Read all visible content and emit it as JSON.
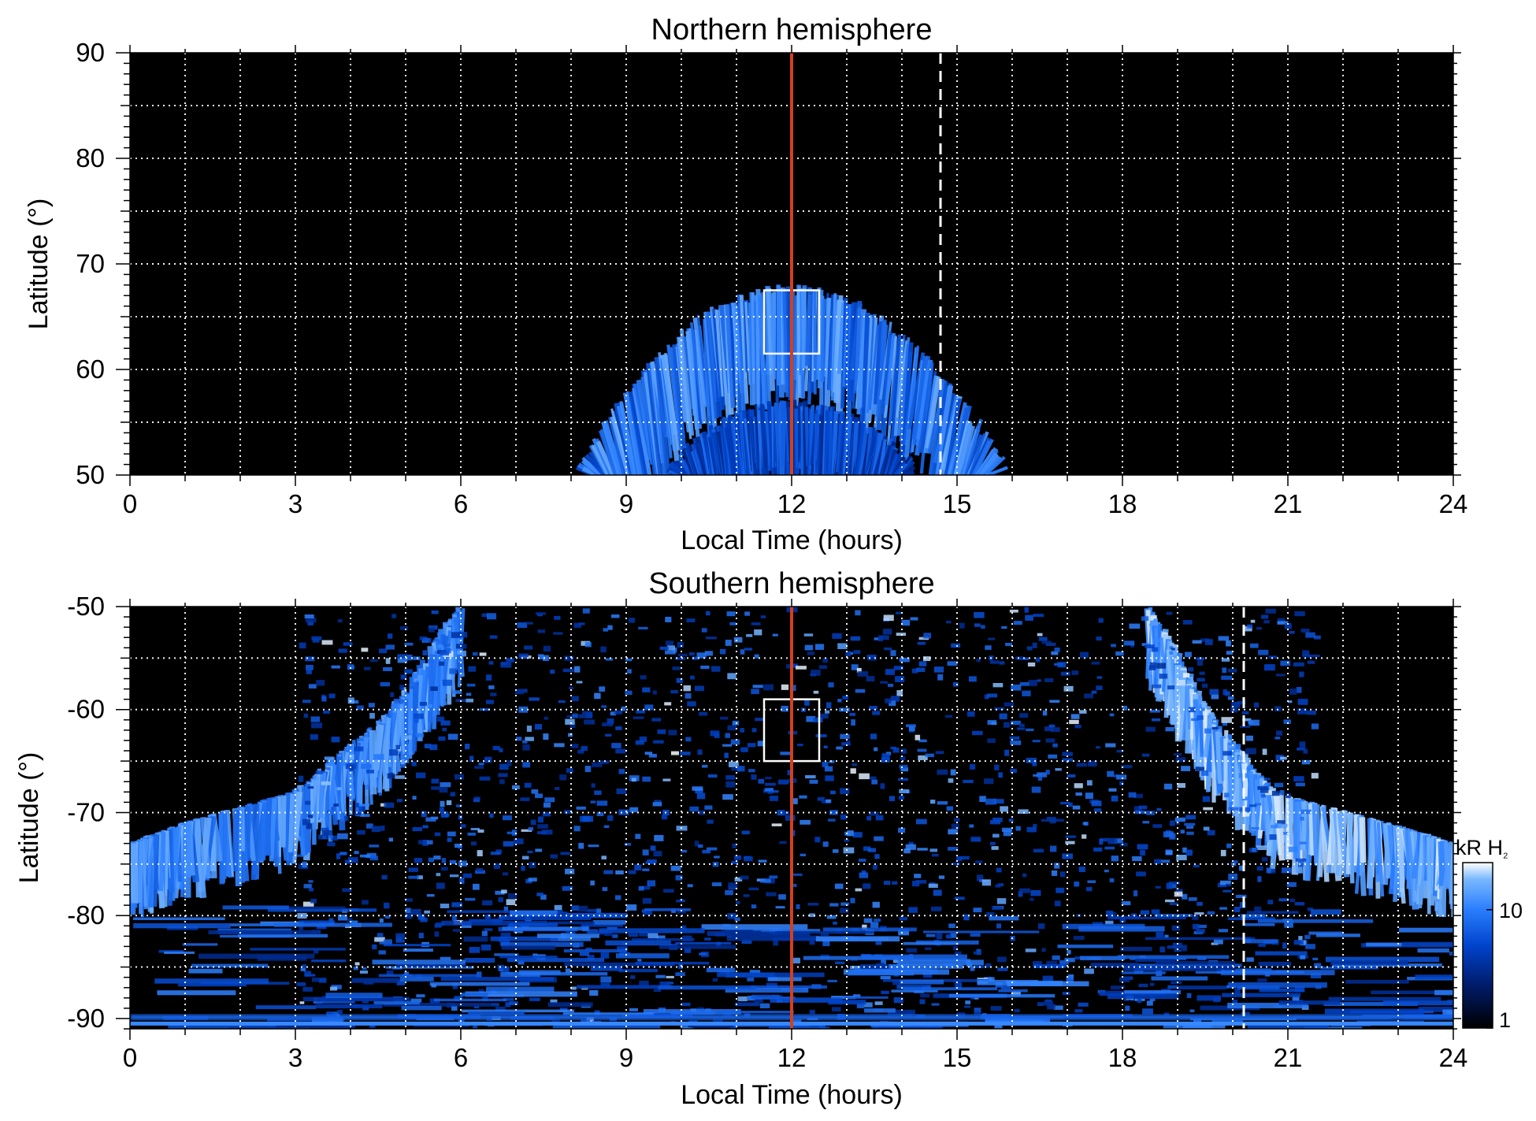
{
  "chart_data": [
    {
      "type": "heatmap",
      "title": "Northern hemisphere",
      "xlabel": "Local Time (hours)",
      "ylabel": "Latitude (°)",
      "xlim": [
        0,
        24
      ],
      "ylim": [
        50,
        90
      ],
      "xticks": [
        0,
        3,
        6,
        9,
        12,
        15,
        18,
        21,
        24
      ],
      "yticks": [
        50,
        60,
        70,
        80,
        90
      ],
      "grid": true,
      "background": "#000000",
      "noon_line": {
        "x": 12,
        "color": "#d2401c"
      },
      "dashed_line": {
        "x": 14.7,
        "color": "#ffffff"
      },
      "box": {
        "x": [
          11.5,
          12.5
        ],
        "y": [
          61.5,
          67.5
        ]
      },
      "features": [
        {
          "shape": "arc",
          "center_x": 12,
          "lat_top": 67,
          "lat_bottom": 58,
          "x_left_at_50": 8.5,
          "x_right_at_50": 16.3,
          "intensity": 0.75
        },
        {
          "shape": "arc",
          "center_x": 12,
          "lat_top": 56,
          "lat_bottom": 50,
          "x_left_at_50": 9.8,
          "x_right_at_50": 14.3,
          "intensity": 0.45
        }
      ]
    },
    {
      "type": "heatmap",
      "title": "Southern hemisphere",
      "xlabel": "Local Time (hours)",
      "ylabel": "Latitude (°)",
      "xlim": [
        0,
        24
      ],
      "ylim": [
        -91,
        -50
      ],
      "xticks": [
        0,
        3,
        6,
        9,
        12,
        15,
        18,
        21,
        24
      ],
      "yticks": [
        -90,
        -80,
        -70,
        -60,
        -50
      ],
      "grid": true,
      "background": "#000000",
      "noon_line": {
        "x": 12,
        "color": "#d2401c"
      },
      "dashed_line": {
        "x": 20.2,
        "color": "#ffffff"
      },
      "box": {
        "x": [
          11.5,
          12.5
        ],
        "y": [
          -65,
          -59
        ]
      },
      "colorbar": {
        "label": "kR H₂",
        "scale": "log",
        "ticks": [
          "10",
          "1"
        ],
        "tick_values": [
          10,
          1
        ],
        "range": [
          1,
          25
        ],
        "colors": [
          "#000000",
          "#001a66",
          "#0044cc",
          "#2b7fff",
          "#7ab8ff",
          "#ffffff"
        ]
      },
      "features": [
        {
          "shape": "band",
          "desc_points": [
            [
              6.0,
              -50
            ],
            [
              4.8,
              -60
            ],
            [
              3.0,
              -68
            ],
            [
              1.0,
              -71
            ],
            [
              0.0,
              -73
            ]
          ],
          "width_deg": 7,
          "intensity": 0.8
        },
        {
          "shape": "band",
          "desc_points": [
            [
              18.5,
              -50
            ],
            [
              19.5,
              -60
            ],
            [
              20.7,
              -68
            ],
            [
              22.8,
              -71
            ],
            [
              24.0,
              -73
            ]
          ],
          "width_deg": 7,
          "intensity": 0.9
        },
        {
          "shape": "speckle",
          "x": [
            6.0,
            18.5
          ],
          "y": [
            -91,
            -50
          ],
          "intensity": 0.5
        },
        {
          "shape": "band",
          "lat": -90,
          "intensity": 0.6
        }
      ]
    }
  ],
  "labels": {
    "north_title": "Northern hemisphere",
    "south_title": "Southern hemisphere",
    "xlabel": "Local Time (hours)",
    "ylabel": "Latitude (°)",
    "colorbar_label_main": "kR H",
    "colorbar_label_sub": "₂",
    "north_xticks": [
      "0",
      "3",
      "6",
      "9",
      "12",
      "15",
      "18",
      "21",
      "24"
    ],
    "south_xticks": [
      "0",
      "3",
      "6",
      "9",
      "12",
      "15",
      "18",
      "21",
      "24"
    ],
    "north_yticks": [
      "50",
      "60",
      "70",
      "80",
      "90"
    ],
    "south_yticks": [
      "-90",
      "-80",
      "-70",
      "-60",
      "-50"
    ],
    "cbar_ticks": [
      "10",
      "1"
    ]
  }
}
